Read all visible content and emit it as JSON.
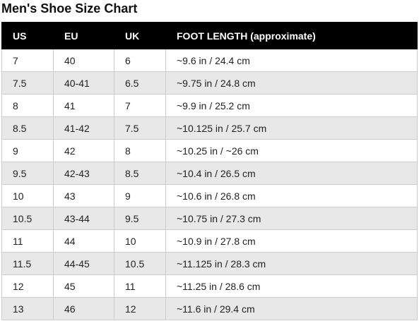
{
  "title": "Men's Shoe Size Chart",
  "table": {
    "headers": [
      "US",
      "EU",
      "UK",
      "FOOT LENGTH (approximate)"
    ],
    "rows": [
      [
        "7",
        "40",
        "6",
        "~9.6 in / 24.4 cm"
      ],
      [
        "7.5",
        "40-41",
        "6.5",
        "~9.75 in / 24.8 cm"
      ],
      [
        "8",
        "41",
        "7",
        "~9.9 in / 25.2 cm"
      ],
      [
        "8.5",
        "41-42",
        "7.5",
        "~10.125 in / 25.7 cm"
      ],
      [
        "9",
        "42",
        "8",
        "~10.25 in / ~26 cm"
      ],
      [
        "9.5",
        "42-43",
        "8.5",
        "~10.4 in / 26.5 cm"
      ],
      [
        "10",
        "43",
        "9",
        "~10.6 in / 26.8 cm"
      ],
      [
        "10.5",
        "43-44",
        "9.5",
        "~10.75 in / 27.3 cm"
      ],
      [
        "11",
        "44",
        "10",
        "~10.9 in / 27.8 cm"
      ],
      [
        "11.5",
        "44-45",
        "10.5",
        "~11.125 in / 28.3 cm"
      ],
      [
        "12",
        "45",
        "11",
        "~11.25 in / 28.6 cm"
      ],
      [
        "13",
        "46",
        "12",
        "~11.6 in / 29.4 cm"
      ]
    ]
  },
  "colors": {
    "header_background": "#000000",
    "header_text": "#ffffff",
    "stripe_row": "#e8e8e8",
    "border": "#cccccc"
  }
}
